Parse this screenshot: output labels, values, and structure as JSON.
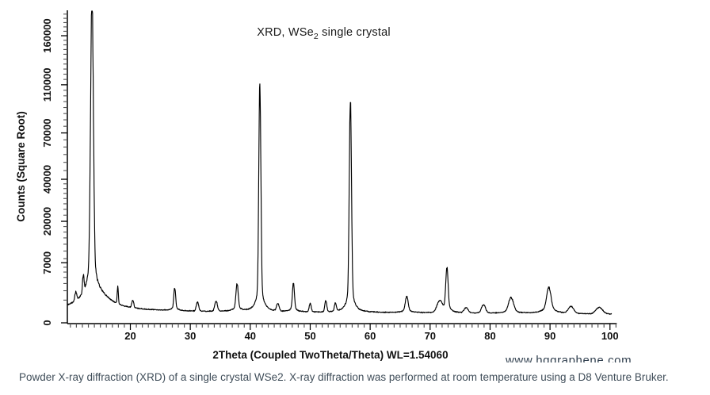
{
  "title": {
    "pre": "XRD, WSe",
    "sub": "2",
    "post": " single crystal"
  },
  "caption": "Powder X-ray diffraction (XRD) of a single crystal WSe2. X-ray diffraction was performed at room temperature using a D8 Venture Bruker.",
  "watermark": "www.hqgraphene.com",
  "colors": {
    "curve": "#000000",
    "axis": "#000000",
    "major_tick": "#000000",
    "minor_tick": "#555555",
    "caption_text": "#3f4d59",
    "watermark_text": "#31404f",
    "background": "#ffffff"
  },
  "chart_data": {
    "type": "line",
    "title": "XRD, WSe2 single crystal",
    "xlabel": "2Theta (Coupled TwoTheta/Theta) WL=1.54060",
    "ylabel": "Counts (Square Root)",
    "legend": "none",
    "grid": false,
    "x_axis": {
      "min": 9.55,
      "max": 100.3,
      "major_ticks": [
        20,
        30,
        40,
        50,
        60,
        70,
        80,
        90,
        100
      ],
      "minor_tick_start": 10,
      "minor_tick_end": 101,
      "minor_tick_step": 1
    },
    "y_axis": {
      "scale": "sqrt",
      "min": 0,
      "max": 188000,
      "labeled_ticks": [
        0,
        7000,
        20000,
        40000,
        70000,
        110000,
        160000
      ],
      "minor_ticks": [
        1000,
        2000,
        3000,
        4000,
        5000,
        6000,
        8000,
        10000,
        12000,
        14000,
        16000,
        18000,
        22500,
        25000,
        27500,
        30000,
        32500,
        35000,
        37500,
        45000,
        50000,
        55000,
        60000,
        65000,
        75000,
        80000,
        85000,
        90000,
        95000,
        100000,
        105000,
        115000,
        120000,
        125000,
        130000,
        135000,
        140000,
        145000,
        150000,
        155000,
        165000,
        170000,
        175000,
        180000,
        185000
      ]
    },
    "baseline": {
      "start_counts": 255,
      "slope_per_degree": -1.15
    },
    "noise": {
      "relative": 0.055,
      "absolute_counts": 12,
      "seed": 7
    },
    "sample_step_deg": 0.05,
    "peaks": [
      {
        "two_theta": 10.9,
        "intensity": 900,
        "sigma": 0.15,
        "base_intensity": 0,
        "base_width": 0,
        "clipped_at_top": false
      },
      {
        "two_theta": 12.15,
        "intensity": 2600,
        "sigma": 0.12,
        "base_intensity": 0,
        "base_width": 0,
        "clipped_at_top": false
      },
      {
        "two_theta": 13.6,
        "intensity": 190000,
        "sigma": 0.18,
        "base_intensity": 15000,
        "base_width": 0.35,
        "clipped_at_top": true
      },
      {
        "two_theta": 14.1,
        "intensity": 0,
        "sigma": 0.2,
        "base_intensity": 1500,
        "base_width": 2.2,
        "clipped_at_top": false
      },
      {
        "two_theta": 17.9,
        "intensity": 1800,
        "sigma": 0.09,
        "base_intensity": 0,
        "base_width": 0,
        "clipped_at_top": false
      },
      {
        "two_theta": 20.4,
        "intensity": 550,
        "sigma": 0.15,
        "base_intensity": 0,
        "base_width": 0,
        "clipped_at_top": false
      },
      {
        "two_theta": 27.4,
        "intensity": 1900,
        "sigma": 0.13,
        "base_intensity": 200,
        "base_width": 0.5,
        "clipped_at_top": false
      },
      {
        "two_theta": 31.2,
        "intensity": 550,
        "sigma": 0.18,
        "base_intensity": 0,
        "base_width": 0,
        "clipped_at_top": false
      },
      {
        "two_theta": 34.3,
        "intensity": 650,
        "sigma": 0.2,
        "base_intensity": 0,
        "base_width": 0,
        "clipped_at_top": false
      },
      {
        "two_theta": 37.8,
        "intensity": 2400,
        "sigma": 0.16,
        "base_intensity": 300,
        "base_width": 0.5,
        "clipped_at_top": false
      },
      {
        "two_theta": 41.6,
        "intensity": 106000,
        "sigma": 0.13,
        "base_intensity": 4200,
        "base_width": 0.32,
        "clipped_at_top": false
      },
      {
        "two_theta": 44.6,
        "intensity": 450,
        "sigma": 0.2,
        "base_intensity": 0,
        "base_width": 0,
        "clipped_at_top": false
      },
      {
        "two_theta": 47.2,
        "intensity": 2500,
        "sigma": 0.14,
        "base_intensity": 300,
        "base_width": 0.4,
        "clipped_at_top": false
      },
      {
        "two_theta": 50.0,
        "intensity": 500,
        "sigma": 0.15,
        "base_intensity": 0,
        "base_width": 0,
        "clipped_at_top": false
      },
      {
        "two_theta": 52.6,
        "intensity": 700,
        "sigma": 0.15,
        "base_intensity": 0,
        "base_width": 0,
        "clipped_at_top": false
      },
      {
        "two_theta": 54.2,
        "intensity": 500,
        "sigma": 0.15,
        "base_intensity": 0,
        "base_width": 0,
        "clipped_at_top": false
      },
      {
        "two_theta": 56.7,
        "intensity": 91000,
        "sigma": 0.14,
        "base_intensity": 3800,
        "base_width": 0.32,
        "clipped_at_top": false
      },
      {
        "two_theta": 66.1,
        "intensity": 1000,
        "sigma": 0.2,
        "base_intensity": 150,
        "base_width": 0.6,
        "clipped_at_top": false
      },
      {
        "two_theta": 71.6,
        "intensity": 700,
        "sigma": 0.4,
        "base_intensity": 0,
        "base_width": 0,
        "clipped_at_top": false
      },
      {
        "two_theta": 72.8,
        "intensity": 5200,
        "sigma": 0.16,
        "base_intensity": 500,
        "base_width": 0.5,
        "clipped_at_top": false
      },
      {
        "two_theta": 76.0,
        "intensity": 250,
        "sigma": 0.3,
        "base_intensity": 0,
        "base_width": 0,
        "clipped_at_top": false
      },
      {
        "two_theta": 78.9,
        "intensity": 450,
        "sigma": 0.3,
        "base_intensity": 0,
        "base_width": 0,
        "clipped_at_top": false
      },
      {
        "two_theta": 83.5,
        "intensity": 900,
        "sigma": 0.35,
        "base_intensity": 150,
        "base_width": 0.8,
        "clipped_at_top": false
      },
      {
        "two_theta": 89.8,
        "intensity": 1900,
        "sigma": 0.3,
        "base_intensity": 350,
        "base_width": 0.9,
        "clipped_at_top": false
      },
      {
        "two_theta": 93.5,
        "intensity": 350,
        "sigma": 0.4,
        "base_intensity": 0,
        "base_width": 0,
        "clipped_at_top": false
      },
      {
        "two_theta": 98.2,
        "intensity": 300,
        "sigma": 0.5,
        "base_intensity": 0,
        "base_width": 0,
        "clipped_at_top": false
      }
    ]
  }
}
